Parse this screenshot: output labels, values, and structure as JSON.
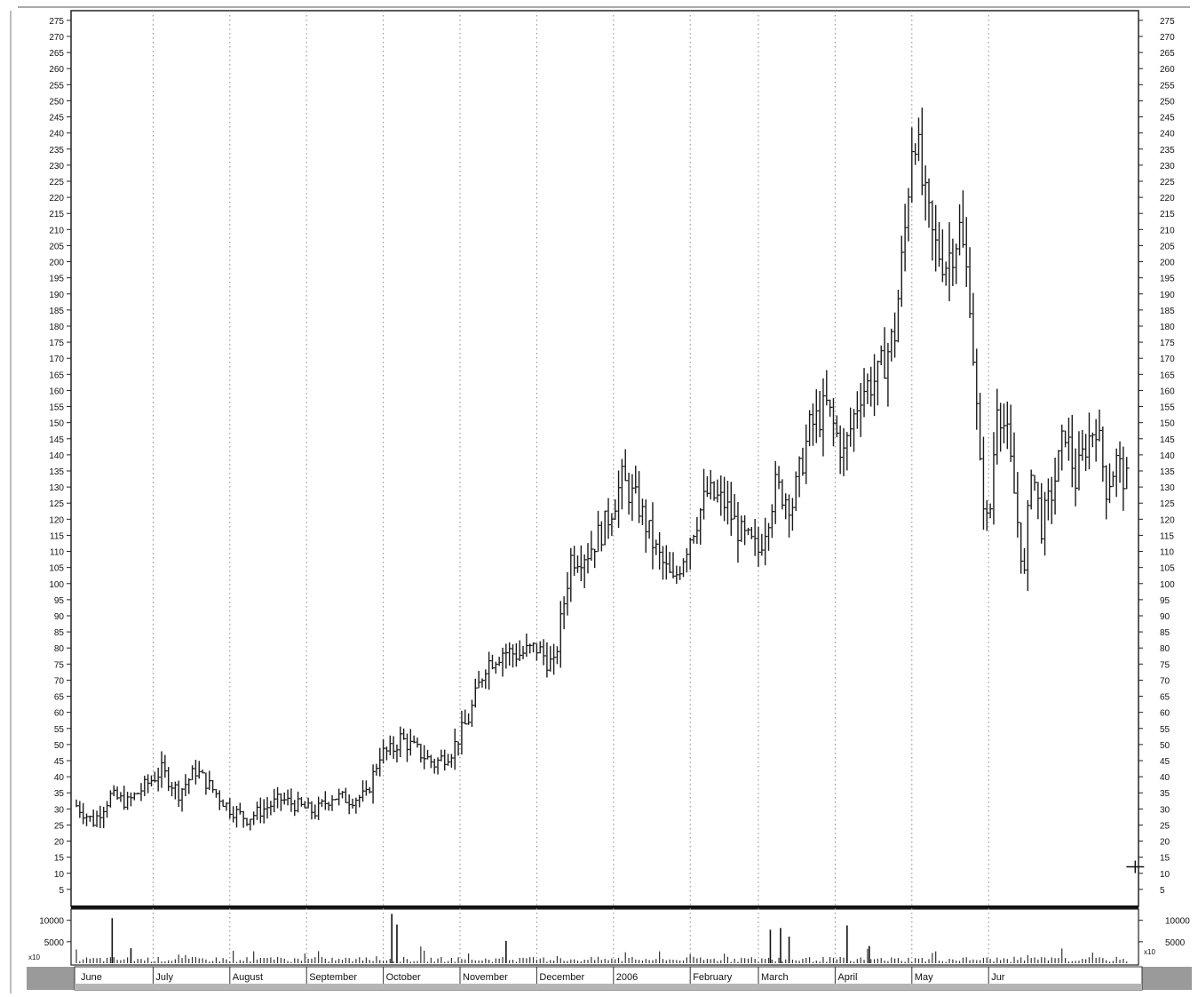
{
  "chart_data": {
    "type": "bar",
    "subtype": "ohlc-price-bars-with-volume",
    "title": "",
    "xlabel": "",
    "ylabel": "",
    "price_axis": {
      "ylim": [
        0,
        278
      ],
      "ticks": [
        5,
        10,
        15,
        20,
        25,
        30,
        35,
        40,
        45,
        50,
        55,
        60,
        65,
        70,
        75,
        80,
        85,
        90,
        95,
        100,
        105,
        110,
        115,
        120,
        125,
        130,
        135,
        140,
        145,
        150,
        155,
        160,
        165,
        170,
        175,
        180,
        185,
        190,
        195,
        200,
        205,
        210,
        215,
        220,
        225,
        230,
        235,
        240,
        245,
        250,
        255,
        260,
        265,
        270,
        275
      ],
      "tick_labels": [
        "5",
        "10",
        "15",
        "20",
        "25",
        "30",
        "35",
        "40",
        "45",
        "50",
        "55",
        "60",
        "65",
        "70",
        "75",
        "80",
        "85",
        "90",
        "95",
        "100",
        "105",
        "110",
        "115",
        "120",
        "125",
        "130",
        "135",
        "140",
        "145",
        "150",
        "155",
        "160",
        "165",
        "170",
        "175",
        "180",
        "185",
        "190",
        "195",
        "200",
        "205",
        "210",
        "215",
        "220",
        "225",
        "230",
        "235",
        "240",
        "245",
        "250",
        "255",
        "260",
        "265",
        "270",
        "275"
      ],
      "both_sides": true
    },
    "volume_axis": {
      "ylim": [
        0,
        12000
      ],
      "ticks": [
        5000,
        10000
      ],
      "tick_labels": [
        "5000",
        "10000"
      ],
      "unit_label": "x10"
    },
    "months": [
      {
        "label": "June",
        "start_week": 0
      },
      {
        "label": "July",
        "start_week": 4.5
      },
      {
        "label": "August",
        "start_week": 9
      },
      {
        "label": "September",
        "start_week": 13.5
      },
      {
        "label": "October",
        "start_week": 18
      },
      {
        "label": "November",
        "start_week": 22.5
      },
      {
        "label": "December",
        "start_week": 27
      },
      {
        "label": "2006",
        "start_week": 31.5
      },
      {
        "label": "February",
        "start_week": 36
      },
      {
        "label": "March",
        "start_week": 40
      },
      {
        "label": "April",
        "start_week": 44.5
      },
      {
        "label": "May",
        "start_week": 49
      },
      {
        "label": "Jur",
        "start_week": 53.5
      }
    ],
    "anchors": [
      [
        0,
        31
      ],
      [
        1,
        26
      ],
      [
        2,
        34
      ],
      [
        3,
        32
      ],
      [
        4,
        37
      ],
      [
        5,
        42
      ],
      [
        6,
        35
      ],
      [
        7,
        42
      ],
      [
        8,
        36
      ],
      [
        9,
        30
      ],
      [
        10,
        27
      ],
      [
        11,
        30
      ],
      [
        12,
        33
      ],
      [
        13,
        31
      ],
      [
        14,
        29
      ],
      [
        15,
        34
      ],
      [
        16,
        33
      ],
      [
        17,
        34
      ],
      [
        17.8,
        47
      ],
      [
        18.5,
        48
      ],
      [
        19,
        52
      ],
      [
        20,
        48
      ],
      [
        21,
        44
      ],
      [
        22,
        48
      ],
      [
        23,
        58
      ],
      [
        24,
        75
      ],
      [
        25,
        79
      ],
      [
        26,
        78
      ],
      [
        27,
        80
      ],
      [
        28,
        74
      ],
      [
        29,
        108
      ],
      [
        30,
        110
      ],
      [
        31,
        118
      ],
      [
        32,
        132
      ],
      [
        33,
        124
      ],
      [
        34,
        110
      ],
      [
        35,
        100
      ],
      [
        36,
        115
      ],
      [
        37,
        128
      ],
      [
        38,
        125
      ],
      [
        39,
        115
      ],
      [
        40,
        110
      ],
      [
        41,
        130
      ],
      [
        42,
        125
      ],
      [
        43,
        148
      ],
      [
        44,
        155
      ],
      [
        45,
        140
      ],
      [
        46,
        160
      ],
      [
        47,
        164
      ],
      [
        48,
        178
      ],
      [
        48.6,
        210
      ],
      [
        49.1,
        245
      ],
      [
        49.7,
        220
      ],
      [
        50.3,
        205
      ],
      [
        51,
        200
      ],
      [
        51.8,
        210
      ],
      [
        52.4,
        190
      ],
      [
        53,
        135
      ],
      [
        53.5,
        115
      ],
      [
        54,
        158
      ],
      [
        54.6,
        145
      ],
      [
        55,
        128
      ],
      [
        55.6,
        102
      ],
      [
        56,
        138
      ],
      [
        56.6,
        118
      ],
      [
        57.3,
        130
      ],
      [
        58,
        148
      ],
      [
        58.6,
        132
      ],
      [
        59.2,
        143
      ],
      [
        59.8,
        150
      ],
      [
        60.4,
        130
      ],
      [
        61,
        138
      ],
      [
        61.7,
        130
      ]
    ],
    "range": {
      "base_amplitude": 3,
      "amplitude_factor": 0.06,
      "seed": 7
    },
    "volume_spikes": [
      {
        "week": 2.1,
        "value": 10500
      },
      {
        "week": 3.2,
        "value": 3500
      },
      {
        "week": 18.5,
        "value": 11500
      },
      {
        "week": 18.8,
        "value": 9000
      },
      {
        "week": 25.2,
        "value": 5200
      },
      {
        "week": 40.7,
        "value": 7800
      },
      {
        "week": 41.3,
        "value": 8200
      },
      {
        "week": 41.8,
        "value": 6200
      },
      {
        "week": 45.2,
        "value": 8800
      },
      {
        "week": 46.5,
        "value": 4000
      }
    ],
    "grid": {
      "vertical_month_lines": "dotted",
      "horizontal": false
    },
    "legend": "none",
    "cursor_marker": {
      "week": 62.1,
      "price": 12
    }
  }
}
